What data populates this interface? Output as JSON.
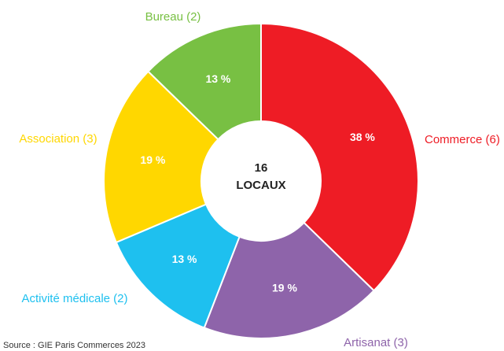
{
  "chart_data": {
    "type": "donut",
    "categories": [
      "Commerce (6)",
      "Artisanat (3)",
      "Activité médicale (2)",
      "Association (3)",
      "Bureau (2)"
    ],
    "values": [
      38,
      19,
      13,
      19,
      13
    ],
    "value_labels": [
      "38 %",
      "19 %",
      "13 %",
      "19 %",
      "13 %"
    ],
    "colors": [
      "#ee1c25",
      "#8e64aa",
      "#1ec0ef",
      "#ffd700",
      "#78c043"
    ],
    "center_text": [
      "16",
      "LOCAUX"
    ],
    "source": "Source : GIE Paris Commerces 2023"
  }
}
